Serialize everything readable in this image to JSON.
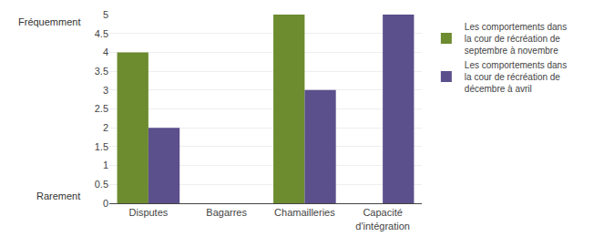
{
  "chart_data": {
    "type": "bar",
    "categories": [
      "Disputes",
      "Bagarres",
      "Chamailleries",
      "Capacité\nd'intégration"
    ],
    "series": [
      {
        "name": "Les comportements dans\nla cour de récréation de\nseptembre à novembre",
        "color": "#6d8b2f",
        "values": [
          4,
          0,
          5,
          0
        ]
      },
      {
        "name": "Les comportements dans\nla cour de récréation de\ndécembre à avril",
        "color": "#5b4f8c",
        "values": [
          2,
          0,
          3,
          5
        ]
      }
    ],
    "annotations": [
      "Fréquemment",
      "Rarement"
    ],
    "ylim": [
      0,
      5
    ],
    "yticks": [
      0,
      0.5,
      1,
      1.5,
      2,
      2.5,
      3,
      3.5,
      4,
      4.5,
      5
    ],
    "grid": true,
    "legend": "right"
  }
}
